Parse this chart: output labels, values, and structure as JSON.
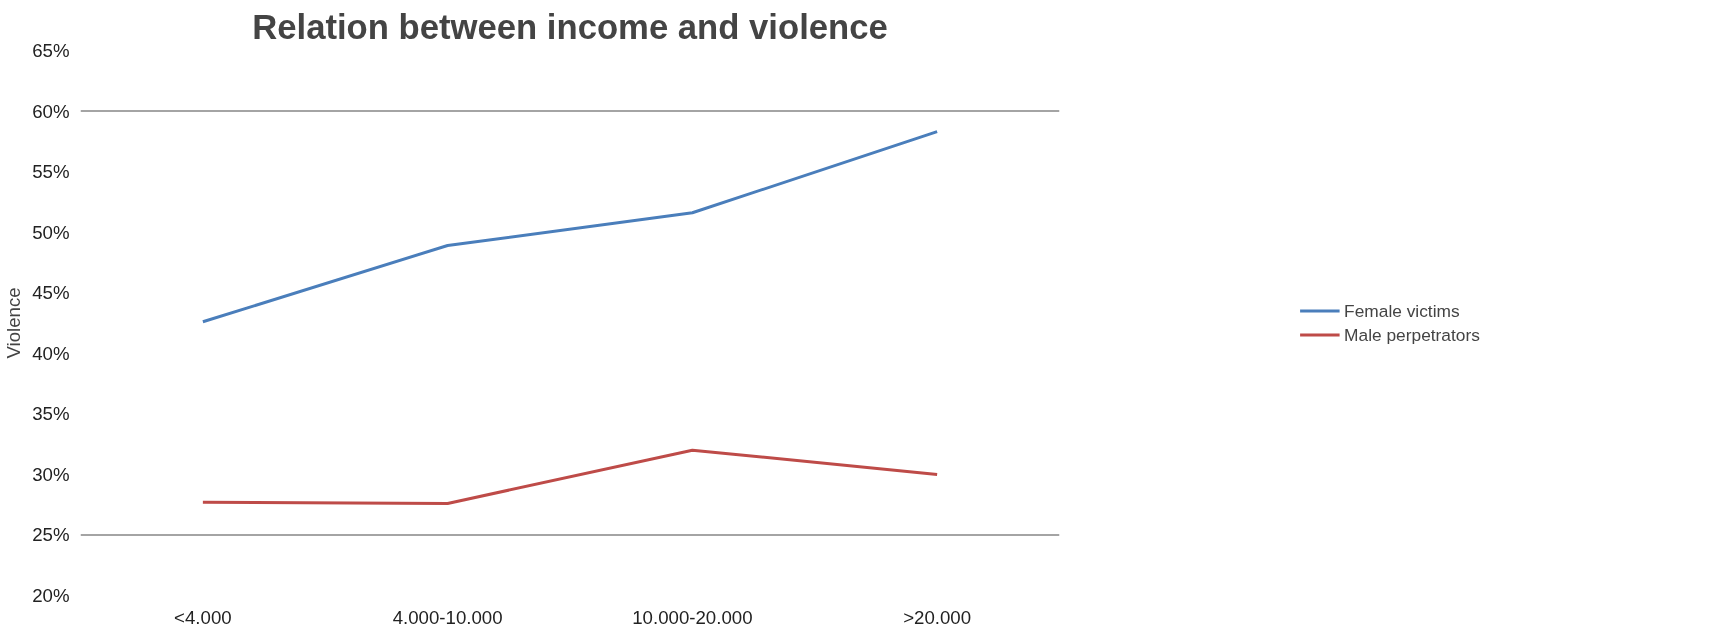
{
  "chart_data": {
    "type": "line",
    "title": "Relation between income and violence",
    "ylabel": "Violence",
    "categories": [
      "<4.000",
      "4.000-10.000",
      "10.000-20.000",
      ">20.000"
    ],
    "series": [
      {
        "name": "Female victims",
        "color": "#4a7ebb",
        "values": [
          42.6,
          48.9,
          51.6,
          58.3
        ]
      },
      {
        "name": "Male perpetrators",
        "color": "#be4b48",
        "values": [
          27.7,
          27.6,
          32.0,
          30.0
        ]
      }
    ],
    "ylim": [
      20,
      65
    ],
    "yticks": [
      {
        "value": 20,
        "label": "20%"
      },
      {
        "value": 25,
        "label": "25%"
      },
      {
        "value": 30,
        "label": "30%"
      },
      {
        "value": 35,
        "label": "35%"
      },
      {
        "value": 40,
        "label": "40%"
      },
      {
        "value": 45,
        "label": "45%"
      },
      {
        "value": 50,
        "label": "50%"
      },
      {
        "value": 55,
        "label": "55%"
      },
      {
        "value": 60,
        "label": "60%"
      },
      {
        "value": 65,
        "label": "65%"
      }
    ],
    "ref_lines": [
      {
        "axis": "y",
        "value": 25,
        "color": "#868686"
      },
      {
        "axis": "y",
        "value": 60,
        "color": "#868686"
      }
    ],
    "legend": "right",
    "marker": "none",
    "line_style": "solid"
  }
}
